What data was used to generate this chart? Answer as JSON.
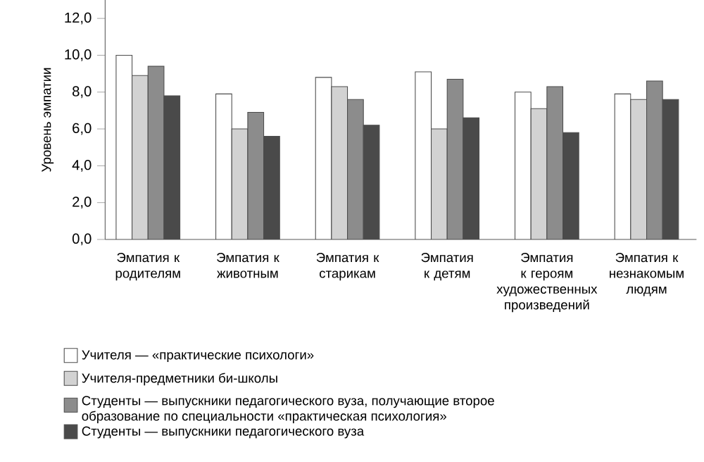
{
  "chart_data": {
    "type": "bar",
    "ylabel": "Уровень эмпатии",
    "categories": [
      "Эмпатия к родителям",
      "Эмпатия к животным",
      "Эмпатия к старикам",
      "Эмпатия к детям",
      "Эмпатия к героям художественных произведений",
      "Эмпатия к незнакомым людям"
    ],
    "series": [
      {
        "name": "Учителя — «практические психологи»",
        "color": "#ffffff",
        "values": [
          10.0,
          7.9,
          8.8,
          9.1,
          8.0,
          7.9
        ]
      },
      {
        "name": "Учителя-предметники би-школы",
        "color": "#d2d2d2",
        "values": [
          8.9,
          6.0,
          8.3,
          6.0,
          7.1,
          7.6
        ]
      },
      {
        "name": "Студенты — выпускники педагогического вуза, получающие второе образование по специальности «практическая психология»",
        "color": "#8c8c8c",
        "values": [
          9.4,
          6.9,
          7.6,
          8.7,
          8.3,
          8.6
        ]
      },
      {
        "name": "Студенты — выпускники педагогического вуза",
        "color": "#4a4a4a",
        "values": [
          7.8,
          5.6,
          6.2,
          6.6,
          5.8,
          7.6
        ]
      }
    ],
    "ylim": [
      0,
      13
    ],
    "yticks": [
      {
        "value": 0,
        "label": "0,0"
      },
      {
        "value": 2,
        "label": "2,0"
      },
      {
        "value": 4,
        "label": "4,0"
      },
      {
        "value": 6,
        "label": "6,0"
      },
      {
        "value": 8,
        "label": "8,0"
      },
      {
        "value": 10,
        "label": "10,0"
      },
      {
        "value": 12,
        "label": "12,0"
      }
    ],
    "legend": "bottom",
    "grid": false
  }
}
